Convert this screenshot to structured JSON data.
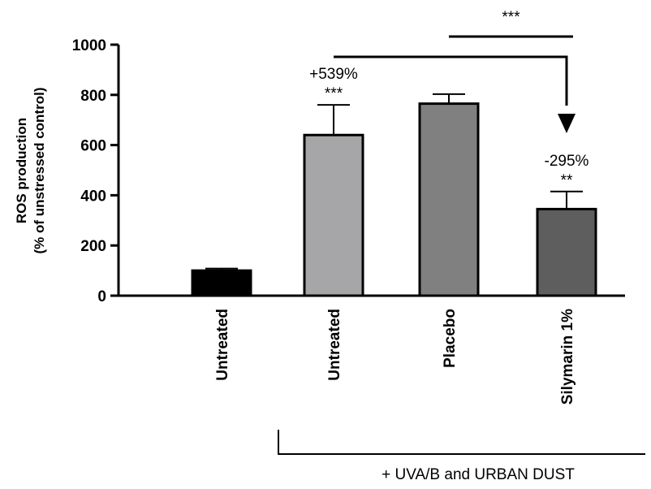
{
  "chart_data": {
    "type": "bar",
    "title": "",
    "ylabel": [
      "ROS production",
      "(% of unstressed control)"
    ],
    "xlabel": "",
    "ylim": [
      0,
      1000
    ],
    "yticks": [
      0,
      200,
      400,
      600,
      800,
      1000
    ],
    "categories": [
      "Untreated",
      "Untreated",
      "Placebo",
      "Silymarin 1%"
    ],
    "values": [
      100,
      640,
      765,
      345
    ],
    "errors": [
      8,
      120,
      38,
      70
    ],
    "bar_colors": [
      "#000000",
      "#a6a6a8",
      "#808080",
      "#5e5e5e"
    ],
    "bar_annotations": [
      {
        "bar": 1,
        "lines": [
          "+539%",
          "***"
        ]
      },
      {
        "bar": 3,
        "lines": [
          "-295%",
          "**"
        ]
      }
    ],
    "comparison": {
      "from": 1,
      "to": 3,
      "label": "***"
    },
    "group_bracket": {
      "from": 1,
      "to": 3,
      "label": "+ UVA/B and URBAN DUST"
    }
  }
}
